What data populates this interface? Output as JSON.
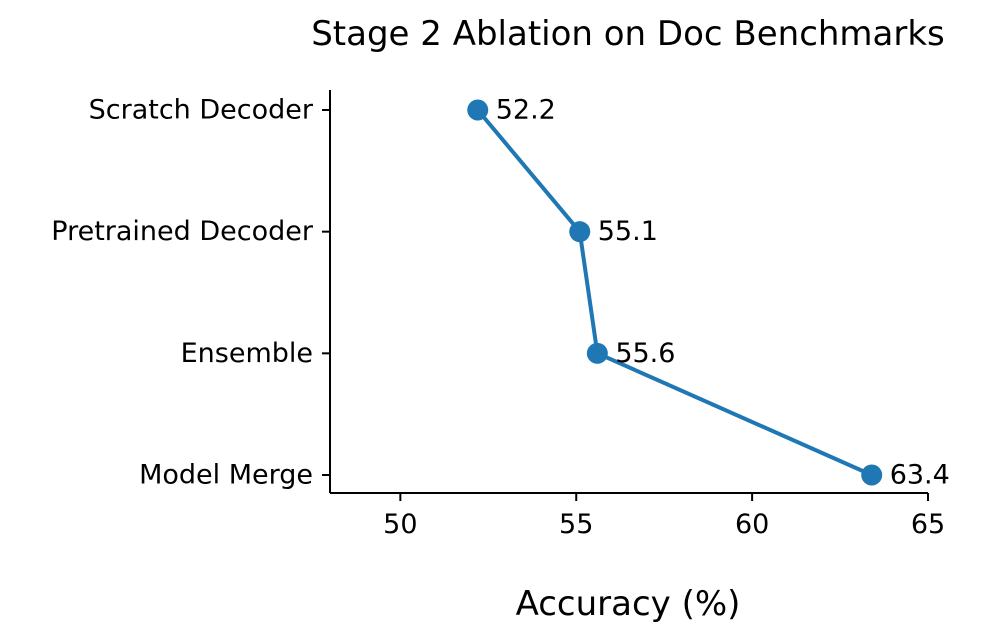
{
  "chart_data": {
    "type": "line",
    "title": "Stage 2 Ablation on Doc Benchmarks",
    "xlabel": "Accuracy (%)",
    "ylabel": "",
    "categories": [
      "Scratch Decoder",
      "Pretrained Decoder",
      "Ensemble",
      "Model Merge"
    ],
    "values": [
      52.2,
      55.1,
      55.6,
      63.4
    ],
    "data_labels": [
      "52.2",
      "55.1",
      "55.6",
      "63.4"
    ],
    "xlim": [
      48,
      65
    ],
    "xticks": [
      50,
      55,
      60,
      65
    ],
    "xtick_labels": [
      "50",
      "55",
      "60",
      "65"
    ],
    "orientation": "horizontal-values",
    "grid": false,
    "series_color": "#1f77b4"
  }
}
